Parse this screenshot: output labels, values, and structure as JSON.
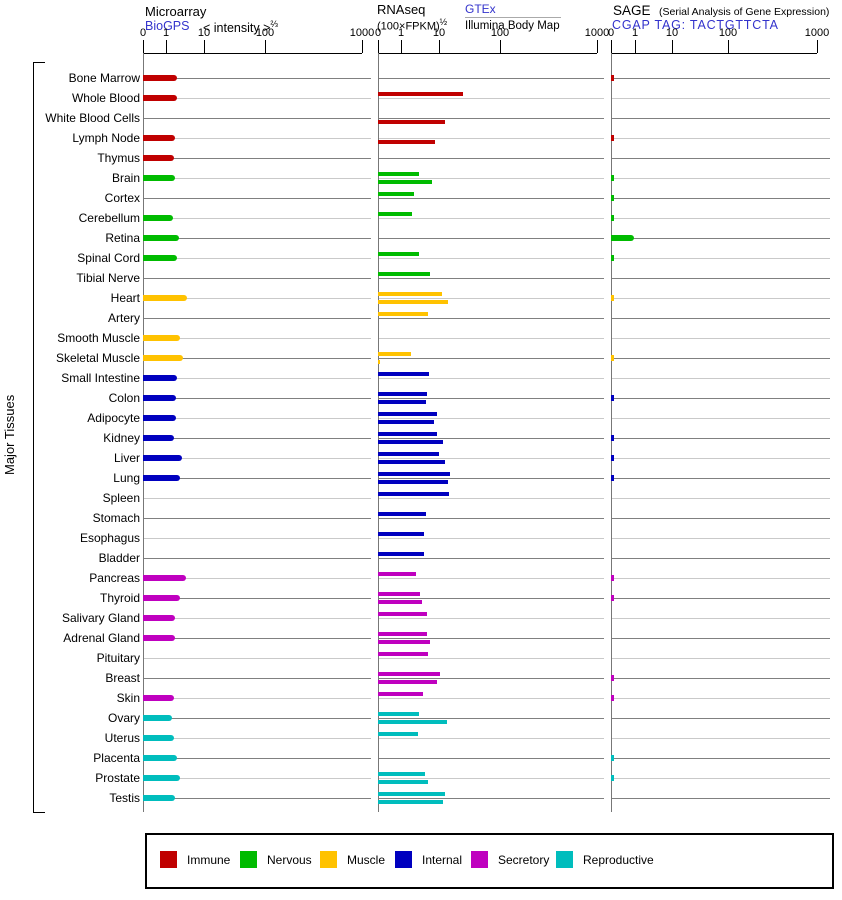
{
  "y_axis_label": "Major Tissues",
  "axis_tick_labels": [
    "0",
    "1",
    "10",
    "100",
    "1000"
  ],
  "header": {
    "microarray": {
      "title": "Microarray",
      "biogps_link": "BioGPS",
      "intensity_label": "< intensity >",
      "intensity_sup": "⅔"
    },
    "rnaseq": {
      "title": "RNAseq",
      "units_label": "(100×FPKM)",
      "units_sup": "½",
      "gtex_link": "GTEx",
      "illumina_label": "Illumina Body Map"
    },
    "sage": {
      "title": "SAGE",
      "subtitle": "(Serial Analysis of Gene Expression)",
      "cgap_link": "CGAP TAG: TACTGTTCTA"
    }
  },
  "group_colors": {
    "immune": "#c00000",
    "nervous": "#00bb00",
    "muscle": "#ffc200",
    "internal": "#0000bf",
    "secretory": "#bf00bf",
    "reproductive": "#00bdbd"
  },
  "legend": [
    {
      "label": "Immune",
      "group": "immune"
    },
    {
      "label": "Nervous",
      "group": "nervous"
    },
    {
      "label": "Muscle",
      "group": "muscle"
    },
    {
      "label": "Internal",
      "group": "internal"
    },
    {
      "label": "Secretory",
      "group": "secretory"
    },
    {
      "label": "Reproductive",
      "group": "reproductive"
    }
  ],
  "chart_data": {
    "type": "bar",
    "orientation": "horizontal",
    "x_scale": "nonlinear, ticks 0 / 1 / 10 / 100 / 1000 on every panel",
    "panels": [
      "Microarray BioGPS intensity^2/3",
      "RNAseq (100×FPKM)^1/2 GTEx + Illumina Body Map",
      "SAGE CGAP tag counts"
    ],
    "categories": [
      "Bone Marrow",
      "Whole Blood",
      "White Blood Cells",
      "Lymph Node",
      "Thymus",
      "Brain",
      "Cortex",
      "Cerebellum",
      "Retina",
      "Spinal Cord",
      "Tibial Nerve",
      "Heart",
      "Artery",
      "Smooth Muscle",
      "Skeletal Muscle",
      "Small Intestine",
      "Colon",
      "Adipocyte",
      "Kidney",
      "Liver",
      "Lung",
      "Spleen",
      "Stomach",
      "Esophagus",
      "Bladder",
      "Pancreas",
      "Thyroid",
      "Salivary Gland",
      "Adrenal Gland",
      "Pituitary",
      "Breast",
      "Skin",
      "Ovary",
      "Uterus",
      "Placenta",
      "Prostate",
      "Testis"
    ],
    "groups": [
      "immune",
      "immune",
      "immune",
      "immune",
      "immune",
      "nervous",
      "nervous",
      "nervous",
      "nervous",
      "nervous",
      "nervous",
      "muscle",
      "muscle",
      "muscle",
      "muscle",
      "internal",
      "internal",
      "internal",
      "internal",
      "internal",
      "internal",
      "internal",
      "internal",
      "internal",
      "internal",
      "secretory",
      "secretory",
      "secretory",
      "secretory",
      "secretory",
      "secretory",
      "secretory",
      "reproductive",
      "reproductive",
      "reproductive",
      "reproductive",
      "reproductive"
    ],
    "series": [
      {
        "name": "Microarray (BioGPS)",
        "values": [
          1.9,
          2.0,
          null,
          1.7,
          1.6,
          1.7,
          null,
          1.5,
          2.2,
          2.0,
          null,
          3.6,
          null,
          2.3,
          2.8,
          2.0,
          1.8,
          1.8,
          1.6,
          2.6,
          2.3,
          null,
          null,
          null,
          null,
          3.4,
          2.3,
          1.7,
          1.7,
          null,
          null,
          1.6,
          1.4,
          1.6,
          2.0,
          2.3,
          1.7
        ]
      },
      {
        "name": "RNAseq GTEx",
        "values": [
          null,
          25,
          null,
          null,
          null,
          3.0,
          2.2,
          2.0,
          null,
          3.0,
          5.8,
          11,
          5.2,
          null,
          1.8,
          5.5,
          4.8,
          8.8,
          8.8,
          10,
          15,
          14.5,
          4.5,
          4.0,
          4.0,
          2.5,
          3.2,
          4.8,
          4.8,
          5.2,
          10.4,
          3.9,
          3.0,
          2.8,
          null,
          4.3,
          12.5
        ]
      },
      {
        "name": "RNAseq Illumina Body Map",
        "values": [
          null,
          null,
          12.5,
          7.8,
          null,
          6.6,
          null,
          null,
          null,
          null,
          null,
          14,
          null,
          null,
          0.05,
          null,
          4.5,
          7.4,
          11.6,
          12.5,
          14,
          null,
          null,
          null,
          null,
          null,
          3.6,
          null,
          5.8,
          null,
          8.8,
          null,
          13.5,
          null,
          null,
          5.2,
          11.6
        ]
      },
      {
        "name": "SAGE (CGAP)",
        "values": [
          0.05,
          null,
          null,
          0.05,
          null,
          0.05,
          0.05,
          0.05,
          0.95,
          0.05,
          null,
          0.05,
          null,
          null,
          0.05,
          null,
          0.05,
          null,
          0.05,
          0.05,
          0.05,
          null,
          null,
          null,
          null,
          0.05,
          0.05,
          null,
          null,
          null,
          0.05,
          0.05,
          null,
          null,
          0.05,
          0.05,
          null
        ]
      }
    ]
  }
}
